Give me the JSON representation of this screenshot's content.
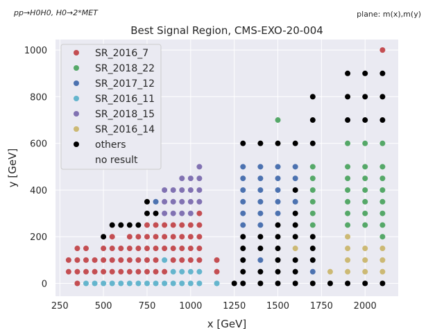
{
  "chart_data": {
    "type": "scatter",
    "title": "Best Signal Region, CMS-EXO-20-004",
    "process_note": "pp→H0H0, H0→2*MET",
    "plane_note": "plane: m(x),m(y)",
    "xlabel": "x [GeV]",
    "ylabel": "y [GeV]",
    "xlim": [
      225,
      2190
    ],
    "ylim": [
      -55,
      1045
    ],
    "xticks": [
      250,
      500,
      750,
      1000,
      1250,
      1500,
      1750,
      2000
    ],
    "yticks": [
      0,
      200,
      400,
      600,
      800,
      1000
    ],
    "grid": true,
    "legend_position": "top-left",
    "series": [
      {
        "name": "SR_2016_7",
        "color": "#c44e52",
        "points": [
          [
            300,
            100
          ],
          [
            300,
            50
          ],
          [
            350,
            150
          ],
          [
            350,
            100
          ],
          [
            350,
            50
          ],
          [
            400,
            150
          ],
          [
            400,
            100
          ],
          [
            400,
            50
          ],
          [
            450,
            100
          ],
          [
            450,
            50
          ],
          [
            500,
            150
          ],
          [
            500,
            100
          ],
          [
            500,
            50
          ],
          [
            550,
            200
          ],
          [
            550,
            150
          ],
          [
            550,
            100
          ],
          [
            550,
            50
          ],
          [
            600,
            150
          ],
          [
            600,
            100
          ],
          [
            600,
            50
          ],
          [
            650,
            200
          ],
          [
            650,
            150
          ],
          [
            650,
            100
          ],
          [
            650,
            50
          ],
          [
            700,
            200
          ],
          [
            700,
            150
          ],
          [
            700,
            100
          ],
          [
            700,
            50
          ],
          [
            750,
            250
          ],
          [
            750,
            200
          ],
          [
            750,
            150
          ],
          [
            750,
            100
          ],
          [
            750,
            50
          ],
          [
            800,
            250
          ],
          [
            800,
            200
          ],
          [
            800,
            150
          ],
          [
            800,
            100
          ],
          [
            800,
            50
          ],
          [
            850,
            250
          ],
          [
            850,
            200
          ],
          [
            850,
            150
          ],
          [
            850,
            50
          ],
          [
            900,
            250
          ],
          [
            900,
            200
          ],
          [
            900,
            150
          ],
          [
            900,
            100
          ],
          [
            950,
            250
          ],
          [
            950,
            200
          ],
          [
            950,
            150
          ],
          [
            950,
            100
          ],
          [
            1000,
            250
          ],
          [
            1000,
            200
          ],
          [
            1000,
            150
          ],
          [
            1000,
            100
          ],
          [
            1050,
            300
          ],
          [
            1050,
            250
          ],
          [
            1050,
            200
          ],
          [
            1050,
            150
          ],
          [
            1050,
            100
          ],
          [
            1150,
            100
          ],
          [
            1150,
            50
          ],
          [
            2100,
            1000
          ],
          [
            350,
            0
          ]
        ]
      },
      {
        "name": "SR_2018_22",
        "color": "#55a868",
        "points": [
          [
            1500,
            700
          ],
          [
            1700,
            500
          ],
          [
            1700,
            450
          ],
          [
            1700,
            400
          ],
          [
            1700,
            350
          ],
          [
            1700,
            300
          ],
          [
            1700,
            250
          ],
          [
            1900,
            600
          ],
          [
            1900,
            500
          ],
          [
            1900,
            450
          ],
          [
            1900,
            400
          ],
          [
            1900,
            350
          ],
          [
            1900,
            300
          ],
          [
            1900,
            250
          ],
          [
            2000,
            600
          ],
          [
            2000,
            500
          ],
          [
            2000,
            450
          ],
          [
            2000,
            400
          ],
          [
            2000,
            350
          ],
          [
            2000,
            300
          ],
          [
            2000,
            250
          ],
          [
            2100,
            600
          ],
          [
            2100,
            500
          ],
          [
            2100,
            450
          ],
          [
            2100,
            400
          ],
          [
            2100,
            350
          ],
          [
            2100,
            300
          ],
          [
            2100,
            250
          ],
          [
            2100,
            200
          ]
        ]
      },
      {
        "name": "SR_2017_12",
        "color": "#4c72b0",
        "points": [
          [
            800,
            350
          ],
          [
            1300,
            500
          ],
          [
            1300,
            450
          ],
          [
            1300,
            400
          ],
          [
            1300,
            350
          ],
          [
            1300,
            300
          ],
          [
            1300,
            250
          ],
          [
            1400,
            500
          ],
          [
            1400,
            450
          ],
          [
            1400,
            400
          ],
          [
            1400,
            350
          ],
          [
            1400,
            300
          ],
          [
            1400,
            250
          ],
          [
            1400,
            100
          ],
          [
            1500,
            500
          ],
          [
            1500,
            450
          ],
          [
            1500,
            400
          ],
          [
            1500,
            350
          ],
          [
            1500,
            300
          ],
          [
            1600,
            500
          ],
          [
            1600,
            450
          ],
          [
            1600,
            350
          ],
          [
            1700,
            50
          ]
        ]
      },
      {
        "name": "SR_2016_11",
        "color": "#64b5cd",
        "points": [
          [
            450,
            0
          ],
          [
            500,
            0
          ],
          [
            550,
            0
          ],
          [
            600,
            0
          ],
          [
            650,
            0
          ],
          [
            700,
            0
          ],
          [
            750,
            0
          ],
          [
            800,
            0
          ],
          [
            850,
            0
          ],
          [
            900,
            0
          ],
          [
            950,
            0
          ],
          [
            1000,
            0
          ],
          [
            1050,
            0
          ],
          [
            850,
            100
          ],
          [
            900,
            50
          ],
          [
            950,
            50
          ],
          [
            1000,
            50
          ],
          [
            1050,
            50
          ],
          [
            1150,
            0
          ],
          [
            400,
            0
          ]
        ]
      },
      {
        "name": "SR_2018_15",
        "color": "#8172b2",
        "points": [
          [
            850,
            400
          ],
          [
            850,
            350
          ],
          [
            850,
            300
          ],
          [
            900,
            400
          ],
          [
            900,
            350
          ],
          [
            900,
            300
          ],
          [
            950,
            450
          ],
          [
            950,
            400
          ],
          [
            950,
            350
          ],
          [
            950,
            300
          ],
          [
            1000,
            450
          ],
          [
            1000,
            400
          ],
          [
            1000,
            350
          ],
          [
            1000,
            300
          ],
          [
            1050,
            500
          ],
          [
            1050,
            450
          ],
          [
            1050,
            400
          ],
          [
            1050,
            350
          ]
        ]
      },
      {
        "name": "SR_2016_14",
        "color": "#ccb974",
        "points": [
          [
            1600,
            150
          ],
          [
            1800,
            50
          ],
          [
            1900,
            200
          ],
          [
            1900,
            150
          ],
          [
            1900,
            100
          ],
          [
            1900,
            50
          ],
          [
            2000,
            150
          ],
          [
            2000,
            100
          ],
          [
            2000,
            50
          ],
          [
            2100,
            150
          ],
          [
            2100,
            100
          ],
          [
            2100,
            50
          ]
        ]
      },
      {
        "name": "others",
        "color": "#000000",
        "points": [
          [
            500,
            200
          ],
          [
            550,
            250
          ],
          [
            600,
            250
          ],
          [
            650,
            250
          ],
          [
            700,
            250
          ],
          [
            750,
            300
          ],
          [
            750,
            350
          ],
          [
            800,
            300
          ],
          [
            1250,
            0
          ],
          [
            1300,
            600
          ],
          [
            1300,
            200
          ],
          [
            1300,
            150
          ],
          [
            1300,
            100
          ],
          [
            1300,
            50
          ],
          [
            1300,
            0
          ],
          [
            1400,
            600
          ],
          [
            1400,
            200
          ],
          [
            1400,
            150
          ],
          [
            1400,
            50
          ],
          [
            1400,
            0
          ],
          [
            1500,
            600
          ],
          [
            1500,
            250
          ],
          [
            1500,
            200
          ],
          [
            1500,
            150
          ],
          [
            1500,
            100
          ],
          [
            1500,
            50
          ],
          [
            1500,
            0
          ],
          [
            1600,
            600
          ],
          [
            1600,
            400
          ],
          [
            1600,
            300
          ],
          [
            1600,
            250
          ],
          [
            1600,
            200
          ],
          [
            1600,
            100
          ],
          [
            1600,
            50
          ],
          [
            1600,
            0
          ],
          [
            1700,
            800
          ],
          [
            1700,
            700
          ],
          [
            1700,
            600
          ],
          [
            1700,
            200
          ],
          [
            1700,
            150
          ],
          [
            1700,
            100
          ],
          [
            1700,
            0
          ],
          [
            1800,
            0
          ],
          [
            1900,
            900
          ],
          [
            1900,
            800
          ],
          [
            1900,
            700
          ],
          [
            1900,
            0
          ],
          [
            2000,
            900
          ],
          [
            2000,
            800
          ],
          [
            2000,
            700
          ],
          [
            2000,
            0
          ],
          [
            2100,
            900
          ],
          [
            2100,
            800
          ],
          [
            2100,
            700
          ],
          [
            2100,
            0
          ]
        ]
      },
      {
        "name": "no result",
        "color": "#ffffff",
        "points": []
      }
    ]
  }
}
